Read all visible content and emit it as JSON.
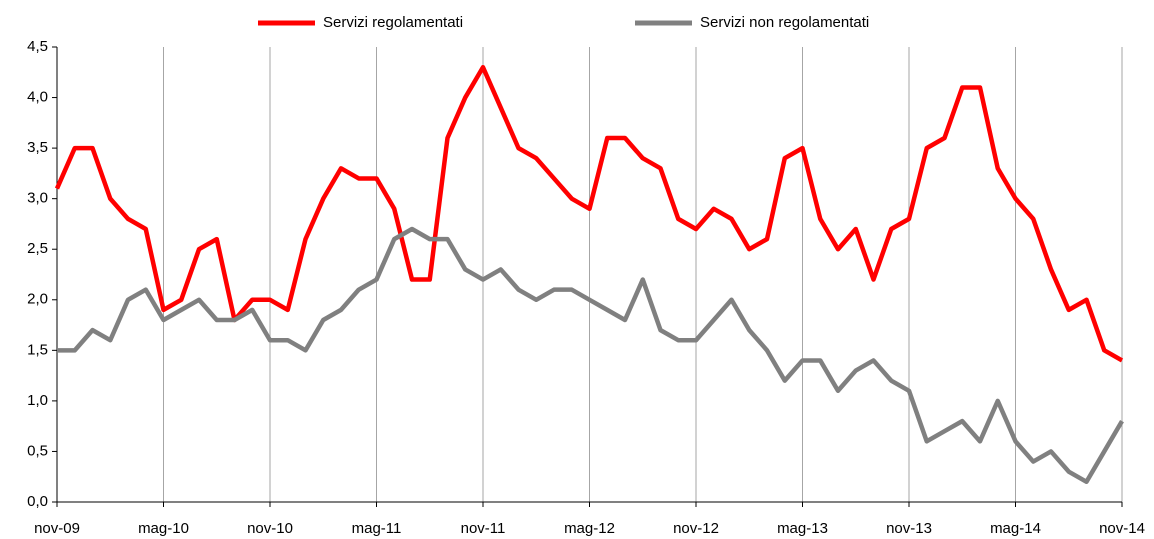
{
  "chart_data": {
    "type": "line",
    "categories": [
      "nov-09",
      null,
      null,
      null,
      null,
      null,
      "mag-10",
      null,
      null,
      null,
      null,
      null,
      "nov-10",
      null,
      null,
      null,
      null,
      null,
      "mag-11",
      null,
      null,
      null,
      null,
      null,
      "nov-11",
      null,
      null,
      null,
      null,
      null,
      "mag-12",
      null,
      null,
      null,
      null,
      null,
      "nov-12",
      null,
      null,
      null,
      null,
      null,
      "mag-13",
      null,
      null,
      null,
      null,
      null,
      "nov-13",
      null,
      null,
      null,
      null,
      null,
      "mag-14",
      null,
      null,
      null,
      null,
      null,
      "nov-14"
    ],
    "series": [
      {
        "name": "Servizi regolamentati",
        "color": "#ff0000",
        "values": [
          3.1,
          3.5,
          3.5,
          3.0,
          2.8,
          2.7,
          1.9,
          2.0,
          2.5,
          2.6,
          1.8,
          2.0,
          2.0,
          1.9,
          2.6,
          3.0,
          3.3,
          3.2,
          3.2,
          2.9,
          2.2,
          2.2,
          3.6,
          4.0,
          4.3,
          3.9,
          3.5,
          3.4,
          3.2,
          3.0,
          2.9,
          3.6,
          3.6,
          3.4,
          3.3,
          2.8,
          2.7,
          2.9,
          2.8,
          2.5,
          2.6,
          3.4,
          3.5,
          2.8,
          2.5,
          2.7,
          2.2,
          2.7,
          2.8,
          3.5,
          3.6,
          4.1,
          4.1,
          3.3,
          3.0,
          2.8,
          2.3,
          1.9,
          2.0,
          1.5,
          1.4
        ]
      },
      {
        "name": "Servizi non regolamentati",
        "color": "#808080",
        "values": [
          1.5,
          1.5,
          1.7,
          1.6,
          2.0,
          2.1,
          1.8,
          1.9,
          2.0,
          1.8,
          1.8,
          1.9,
          1.6,
          1.6,
          1.5,
          1.8,
          1.9,
          2.1,
          2.2,
          2.6,
          2.7,
          2.6,
          2.6,
          2.3,
          2.2,
          2.3,
          2.1,
          2.0,
          2.1,
          2.1,
          2.0,
          1.9,
          1.8,
          2.2,
          1.7,
          1.6,
          1.6,
          1.8,
          2.0,
          1.7,
          1.5,
          1.2,
          1.4,
          1.4,
          1.1,
          1.3,
          1.4,
          1.2,
          1.1,
          0.6,
          0.7,
          0.8,
          0.6,
          1.0,
          0.6,
          0.4,
          0.5,
          0.3,
          0.2,
          0.5,
          0.8
        ]
      }
    ],
    "ylim": [
      0,
      4.5
    ],
    "yticks": [
      {
        "value": 0,
        "label": "0,0"
      },
      {
        "value": 0.5,
        "label": "0,5"
      },
      {
        "value": 1,
        "label": "1,0"
      },
      {
        "value": 1.5,
        "label": "1,5"
      },
      {
        "value": 2,
        "label": "2,0"
      },
      {
        "value": 2.5,
        "label": "2,5"
      },
      {
        "value": 3,
        "label": "3,0"
      },
      {
        "value": 3.5,
        "label": "3,5"
      },
      {
        "value": 4,
        "label": "4,0"
      },
      {
        "value": 4.5,
        "label": "4,5"
      }
    ],
    "grid": true
  }
}
